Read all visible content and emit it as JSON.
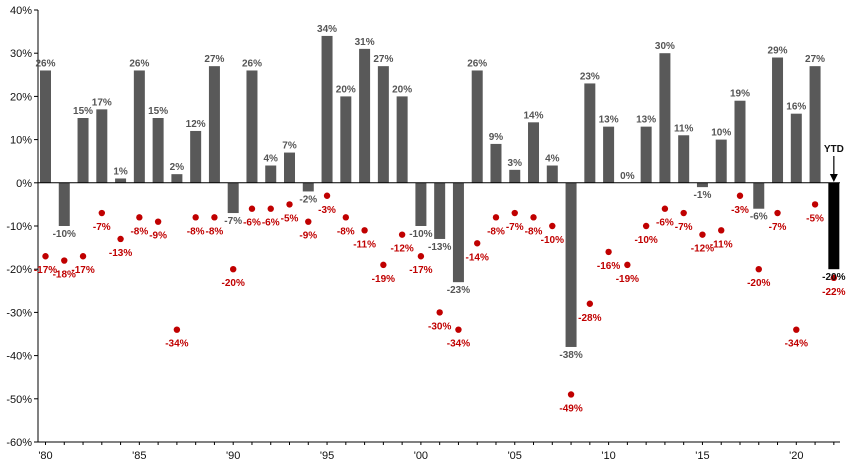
{
  "chart_data": {
    "type": "bar",
    "title": "",
    "xlabel": "",
    "ylabel": "",
    "ylim": [
      -60,
      40
    ],
    "yticks": [
      40,
      30,
      20,
      10,
      0,
      -10,
      -20,
      -30,
      -40,
      -50,
      -60
    ],
    "ytick_labels": [
      "40%",
      "30%",
      "20%",
      "10%",
      "0%",
      "-10%",
      "-20%",
      "-30%",
      "-40%",
      "-50%",
      "-60%"
    ],
    "xtick_labels": [
      {
        "year": 1980,
        "label": "'80"
      },
      {
        "year": 1985,
        "label": "'85"
      },
      {
        "year": 1990,
        "label": "'90"
      },
      {
        "year": 1995,
        "label": "'95"
      },
      {
        "year": 2000,
        "label": "'00"
      },
      {
        "year": 2005,
        "label": "'05"
      },
      {
        "year": 2010,
        "label": "'10"
      },
      {
        "year": 2015,
        "label": "'15"
      },
      {
        "year": 2020,
        "label": "'20"
      }
    ],
    "years": [
      1980,
      1981,
      1982,
      1983,
      1984,
      1985,
      1986,
      1987,
      1988,
      1989,
      1990,
      1991,
      1992,
      1993,
      1994,
      1995,
      1996,
      1997,
      1998,
      1999,
      2000,
      2001,
      2002,
      2003,
      2004,
      2005,
      2006,
      2007,
      2008,
      2009,
      2010,
      2011,
      2012,
      2013,
      2014,
      2015,
      2016,
      2017,
      2018,
      2019,
      2020,
      2021,
      2022
    ],
    "series": [
      {
        "values": [
          26,
          -10,
          15,
          17,
          1,
          26,
          15,
          2,
          12,
          27,
          -7,
          26,
          4,
          7,
          -2,
          34,
          20,
          31,
          27,
          20,
          -10,
          -13,
          -23,
          26,
          9,
          3,
          14,
          4,
          -38,
          23,
          13,
          0,
          13,
          30,
          11,
          -1,
          10,
          19,
          -6,
          29,
          16,
          27,
          -20
        ],
        "labels": [
          "26%",
          "-10%",
          "15%",
          "17%",
          "1%",
          "26%",
          "15%",
          "2%",
          "12%",
          "27%",
          "-7%",
          "26%",
          "4%",
          "7%",
          "-2%",
          "34%",
          "20%",
          "31%",
          "27%",
          "20%",
          "-10%",
          "-13%",
          "-23%",
          "26%",
          "9%",
          "3%",
          "14%",
          "4%",
          "-38%",
          "23%",
          "13%",
          "0%",
          "13%",
          "30%",
          "11%",
          "-1%",
          "10%",
          "19%",
          "-6%",
          "29%",
          "16%",
          "27%",
          "-20%"
        ],
        "color": "#595959"
      },
      {
        "values": [
          -17,
          -18,
          -17,
          -7,
          -13,
          -8,
          -9,
          -34,
          -8,
          -8,
          -20,
          -6,
          -6,
          -5,
          -9,
          -3,
          -8,
          -11,
          -19,
          -12,
          -17,
          -30,
          -34,
          -14,
          -8,
          -7,
          -8,
          -10,
          -49,
          -28,
          -16,
          -19,
          -10,
          -6,
          -7,
          -12,
          -11,
          -3,
          -20,
          -7,
          -34,
          -5,
          -22
        ],
        "labels": [
          "-17%",
          "-18%",
          "-17%",
          "-7%",
          "-13%",
          "-8%",
          "-9%",
          "-34%",
          "-8%",
          "-8%",
          "-20%",
          "-6%",
          "-6%",
          "-5%",
          "-9%",
          "-3%",
          "-8%",
          "-11%",
          "-19%",
          "-12%",
          "-17%",
          "-30%",
          "-34%",
          "-14%",
          "-8%",
          "-7%",
          "-8%",
          "-10%",
          "-49%",
          "-28%",
          "-16%",
          "-19%",
          "-10%",
          "-6%",
          "-7%",
          "-12%",
          "-11%",
          "-3%",
          "-20%",
          "-7%",
          "-34%",
          "-5%",
          "-22%"
        ],
        "color": "#c00000"
      }
    ],
    "ytd": {
      "year": 2022,
      "label": "YTD",
      "color": "#000000"
    }
  }
}
